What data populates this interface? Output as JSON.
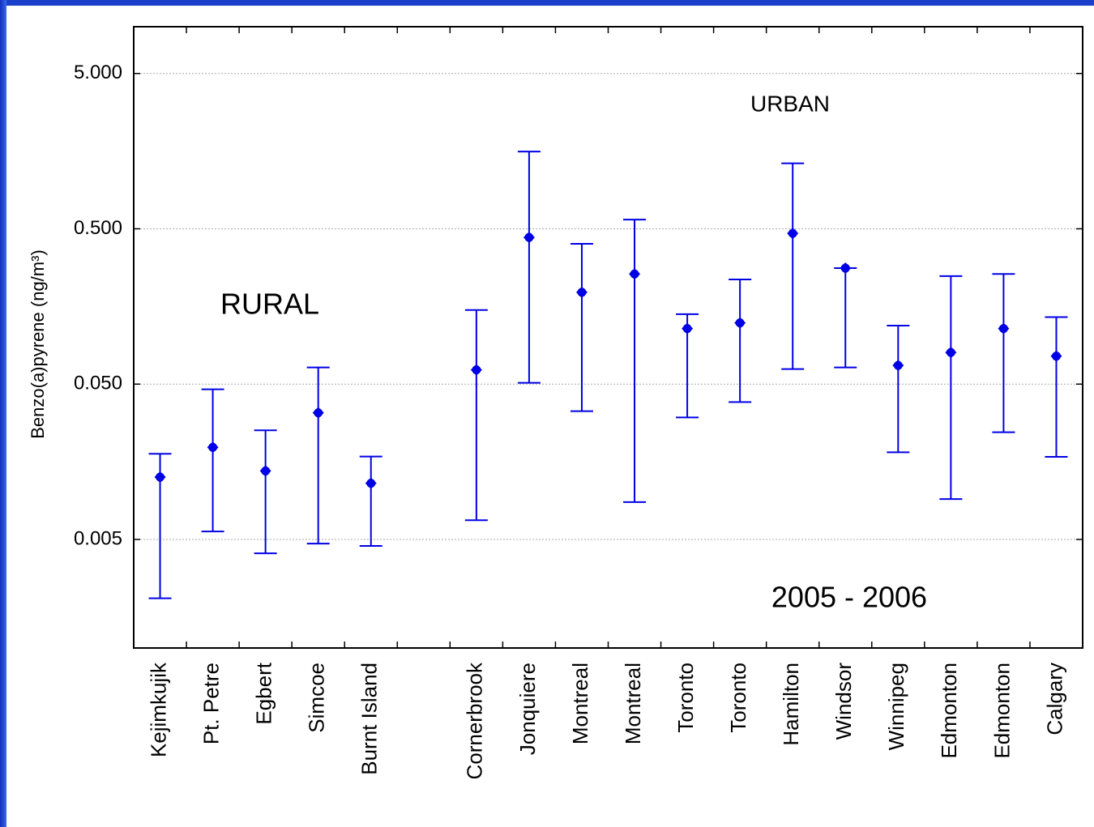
{
  "chart_data": {
    "type": "errorbar",
    "y_label": "Benzo(a)pyrene (ng/m³)",
    "annotations": [
      "RURAL",
      "URBAN",
      "2005 - 2006"
    ],
    "categories": [
      "Kejimkujik",
      "Pt. Petre",
      "Egbert",
      "Simcoe",
      "Burnt Island",
      null,
      "Cornerbrook",
      "Jonquiere",
      "Montreal",
      "Montreal",
      "Toronto",
      "Toronto",
      "Hamilton",
      "Windsor",
      "Winnipeg",
      "Edmonton",
      "Edmonton",
      "Calgary"
    ],
    "values": [
      0.0126,
      0.0196,
      0.0138,
      0.0327,
      0.0115,
      null,
      0.0618,
      0.44,
      0.195,
      0.256,
      0.114,
      0.124,
      0.467,
      0.279,
      0.066,
      0.08,
      0.114,
      0.0757
    ],
    "lower": [
      0.00209,
      0.00563,
      0.00407,
      0.0047,
      0.00454,
      null,
      0.00665,
      0.051,
      0.0335,
      0.0087,
      0.0305,
      0.0383,
      0.0625,
      0.064,
      0.0182,
      0.0091,
      0.0245,
      0.017
    ],
    "upper": [
      0.0178,
      0.0463,
      0.0252,
      0.064,
      0.0171,
      null,
      0.15,
      1.57,
      0.4,
      0.573,
      0.141,
      0.236,
      1.32,
      0.279,
      0.119,
      0.248,
      0.256,
      0.135
    ],
    "color": "#0000e6",
    "log_scale": true,
    "ylim": [
      0.001,
      10
    ],
    "yticks": [
      {
        "value": 5,
        "label": "5.000"
      },
      {
        "value": 0.5,
        "label": "0.500"
      },
      {
        "value": 0.05,
        "label": "0.050"
      },
      {
        "value": 0.005,
        "label": "0.005"
      }
    ],
    "grid": true
  }
}
